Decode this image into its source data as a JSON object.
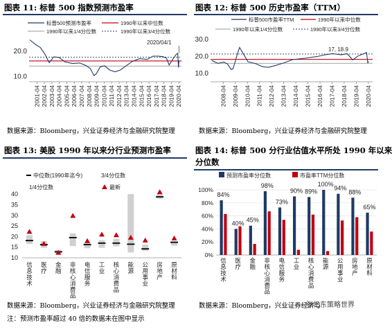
{
  "panels": [
    {
      "id": "fig11",
      "title": "图表 11:  标普 500 指数预测市盈率",
      "source": "数据来源：Bloomberg，兴业证券经济与金融研究院整理"
    },
    {
      "id": "fig12",
      "title": "图表 12:  标普 500 历史市盈率（TTM）",
      "source": "数据来源：Bloomberg，兴业证券经济与金融研究院整理"
    },
    {
      "id": "fig13",
      "title": "图表 13:  美股 1990 年以来分行业预测市盈率",
      "source": "数据来源：Bloomberg，兴业证券经济与金融研究院整理",
      "note": "注：预测市盈率超过 40 倍的数据未在图中显示"
    },
    {
      "id": "fig14",
      "title_line1": "图表 14:  标普 500 分行业估值水平所处 1990 年以来",
      "title_line2": "分位数",
      "source": "数据来源：Bloomberg，兴业证券经济与"
    }
  ],
  "watermark": "张忆东策略世界",
  "colors": {
    "navy": "#1f3a64",
    "red": "#c0000f",
    "gray": "#999999",
    "band": "#d0d0d0"
  },
  "chart_data": [
    {
      "id": "fig11",
      "type": "line",
      "legend": [
        "标普500预测市盈率",
        "1990年以来中位数",
        "1990年以来1/4分位数",
        "1990年以来3/4分位数"
      ],
      "annotation": "2020/04/1",
      "x_ticks": [
        "2001-04",
        "2002-04",
        "2003-04",
        "2004-04",
        "2005-04",
        "2006-04",
        "2007-04",
        "2008-04",
        "2009-04",
        "2010-04",
        "2011-04",
        "2012-04",
        "2013-04",
        "2014-04",
        "2015-04",
        "2016-04",
        "2017-04",
        "2018-04",
        "2019-04",
        "2020-04"
      ],
      "y_ticks": [
        "10.0",
        "20.0"
      ],
      "ylim": [
        8,
        26
      ],
      "median": 16.2,
      "q1": 14.2,
      "q3": 17.7,
      "x": [
        2000.3,
        2001,
        2001.7,
        2002.3,
        2002.9,
        2003.5,
        2004.2,
        2005,
        2006,
        2007,
        2007.8,
        2008.4,
        2008.9,
        2009.2,
        2009.7,
        2010.3,
        2011,
        2011.7,
        2012.4,
        2013.2,
        2014,
        2015,
        2016,
        2016.8,
        2017.5,
        2018.1,
        2018.6,
        2018.95,
        2019.4,
        2019.9,
        2020.1,
        2020.2,
        2020.28
      ],
      "y": [
        24.5,
        22.8,
        21.5,
        19,
        15.5,
        17.8,
        17.6,
        15.8,
        15.2,
        15.4,
        14.4,
        13.2,
        10.4,
        11.2,
        13.8,
        14.3,
        12.6,
        11.9,
        12.6,
        14.3,
        16,
        17.1,
        16.8,
        18.1,
        18.1,
        17.9,
        17.3,
        14.6,
        16.7,
        18.8,
        19.2,
        13.6,
        16.4
      ]
    },
    {
      "id": "fig12",
      "type": "line",
      "legend": [
        "标普500市盈率TTM",
        "1990年以来中位数",
        "1990年以来1/4分位数",
        "1990年以来3/4分位数"
      ],
      "annotation": "17, 18.9",
      "x_ticks": [
        "2008-04",
        "2009-04",
        "2010-04",
        "2011-04",
        "2012-04",
        "2013-04",
        "2014-04",
        "2015-04",
        "2016-04",
        "2017-04",
        "2018-04",
        "2019-04",
        "2020-04"
      ],
      "y_ticks": [
        "10.0",
        "20.0",
        "30.0"
      ],
      "ylim": [
        5,
        32
      ],
      "median": 18.2,
      "q1": 15.9,
      "q3": 21.4,
      "x": [
        2007.3,
        2007.8,
        2008.3,
        2008.6,
        2008.9,
        2009.05,
        2009.2,
        2009.4,
        2009.6,
        2009.9,
        2010.3,
        2010.9,
        2011.5,
        2012,
        2012.6,
        2013.2,
        2014,
        2015,
        2016,
        2016.7,
        2017.3,
        2018,
        2018.5,
        2018.95,
        2019.4,
        2019.9,
        2020.1,
        2020.2,
        2020.28
      ],
      "y": [
        17.6,
        15.9,
        16.6,
        15.5,
        12.3,
        12.6,
        15.9,
        21,
        25.3,
        21.7,
        16.8,
        15.8,
        13.9,
        13.5,
        14.7,
        16,
        18.1,
        18.9,
        19.9,
        21,
        21.6,
        20.9,
        21.6,
        17.9,
        20.2,
        21.7,
        22.3,
        16.2,
        17
      ]
    },
    {
      "id": "fig13",
      "type": "range",
      "legend": [
        "中位数(1990年迄今)",
        "3/4分位数",
        "1/4分位数",
        "最新"
      ],
      "categories": [
        "信息技术",
        "医疗",
        "金融",
        "非核心消费品",
        "电信服务",
        "工业",
        "核心消费品",
        "能源",
        "公用事业",
        "房地产",
        "原材料"
      ],
      "ylim": [
        10,
        42
      ],
      "y_ticks": [
        "10",
        "15",
        "20",
        "25",
        "30",
        "35",
        "40"
      ],
      "q1": [
        16.5,
        14.7,
        11.8,
        15.5,
        14.5,
        14.7,
        15.4,
        12.5,
        13.2,
        37.8,
        15.7
      ],
      "q3": [
        20.6,
        17.8,
        13.8,
        21.5,
        17.3,
        18.3,
        18.9,
        40,
        16.2,
        40,
        17.8
      ],
      "median": [
        18.1,
        16.2,
        12.8,
        19.5,
        16.2,
        16.9,
        16.9,
        16.4,
        14.2,
        38.7,
        17.3
      ],
      "latest": [
        22.3,
        16.6,
        12.4,
        29.8,
        17.9,
        21,
        20.7,
        19.5,
        18.2,
        41,
        19.2
      ]
    },
    {
      "id": "fig14",
      "type": "bar",
      "legend": [
        "预测市盈率分位数",
        "市盈率TTM分位数"
      ],
      "categories": [
        "信息技术",
        "医疗",
        "金融",
        "非核心消费品",
        "电信服务",
        "工业",
        "核心消费品",
        "能源",
        "公用事业",
        "房地产",
        "原材料"
      ],
      "series": [
        {
          "name": "预测市盈率分位数",
          "values": [
            84,
            40,
            45,
            98,
            73,
            90,
            89,
            100,
            94,
            88,
            65
          ]
        },
        {
          "name": "市盈率TTM分位数",
          "values": [
            63,
            44,
            17,
            67,
            54,
            8,
            62,
            6,
            53,
            58,
            36
          ]
        }
      ],
      "labels": [
        "84%",
        "40%",
        "45%",
        "98%",
        "73%",
        "90%",
        "89%",
        "100%",
        "94%",
        "88%",
        "65%"
      ],
      "y_ticks": [
        "0%",
        "20%",
        "40%",
        "60%",
        "80%",
        "100%"
      ],
      "ylim": [
        0,
        100
      ]
    }
  ]
}
